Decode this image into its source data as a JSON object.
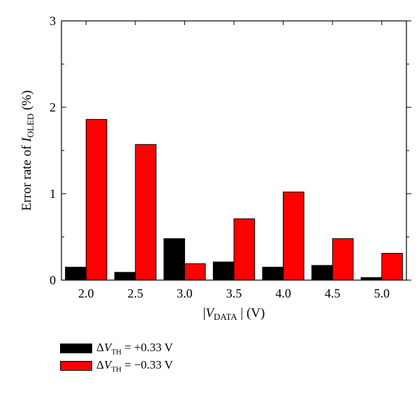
{
  "chart_data": {
    "type": "bar",
    "categories": [
      "2.0",
      "2.5",
      "3.0",
      "3.5",
      "4.0",
      "4.5",
      "5.0"
    ],
    "series": [
      {
        "name": "ΔV_TH = +0.33 V",
        "color": "#000000",
        "values": [
          0.15,
          0.09,
          0.48,
          0.21,
          0.15,
          0.17,
          0.03
        ]
      },
      {
        "name": "ΔV_TH = −0.33 V",
        "color": "#ff0000",
        "values": [
          1.86,
          1.57,
          0.19,
          0.71,
          1.02,
          0.48,
          0.31
        ]
      }
    ],
    "ylim": [
      0,
      3
    ],
    "yticks": [
      "0",
      "1",
      "2",
      "3"
    ],
    "ylabel": {
      "prefix": "Error rate of ",
      "var": "I",
      "sub": "OLED",
      "suffix": "  (%)"
    },
    "xlabel": {
      "prefix": "|",
      "var": "V",
      "sub": "DATA",
      "suffix": " | (V)"
    },
    "legend_position": "bottom-left"
  },
  "legend": [
    {
      "delta": "Δ",
      "var": "V",
      "sub": "TH",
      "value": " = +0.33 V",
      "color": "#000000"
    },
    {
      "delta": "Δ",
      "var": "V",
      "sub": "TH",
      "value": " = −0.33 V",
      "color": "#ff0000"
    }
  ]
}
